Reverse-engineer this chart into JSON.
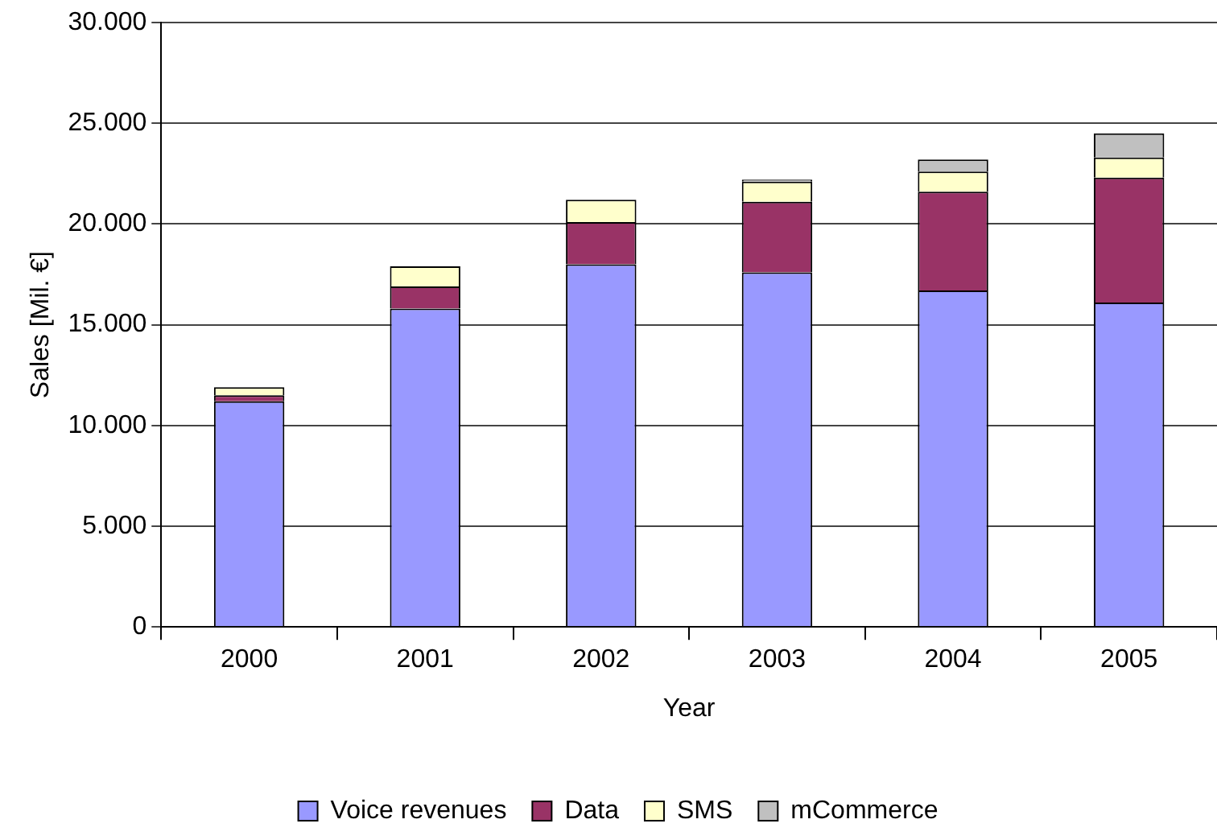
{
  "chart_data": {
    "type": "bar",
    "stacked": true,
    "xlabel": "Year",
    "ylabel": "Sales [Mil. €]",
    "categories": [
      "2000",
      "2001",
      "2002",
      "2003",
      "2004",
      "2005"
    ],
    "series": [
      {
        "name": "Voice revenues",
        "color": "#9999ff",
        "values": [
          11200,
          15800,
          18000,
          17600,
          16700,
          16100
        ]
      },
      {
        "name": "Data",
        "color": "#993366",
        "values": [
          300,
          1100,
          2100,
          3500,
          4900,
          6200
        ]
      },
      {
        "name": "SMS",
        "color": "#ffffcc",
        "values": [
          400,
          1000,
          1100,
          1000,
          1000,
          1000
        ]
      },
      {
        "name": "mCommerce",
        "color": "#c0c0c0",
        "values": [
          0,
          0,
          0,
          100,
          600,
          1200
        ]
      }
    ],
    "ylim": [
      0,
      30000
    ],
    "yticks": [
      {
        "value": 0,
        "label": "0"
      },
      {
        "value": 5000,
        "label": "5.000"
      },
      {
        "value": 10000,
        "label": "10.000"
      },
      {
        "value": 15000,
        "label": "15.000"
      },
      {
        "value": 20000,
        "label": "20.000"
      },
      {
        "value": 25000,
        "label": "25.000"
      },
      {
        "value": 30000,
        "label": "30.000"
      }
    ],
    "grid": "y",
    "legend": "bottom"
  }
}
